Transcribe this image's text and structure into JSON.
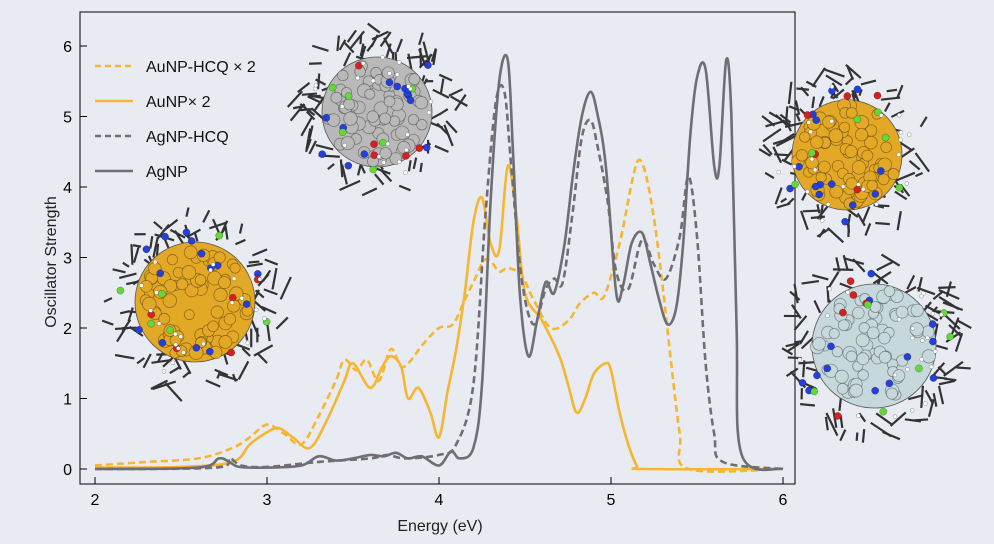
{
  "chart_data": {
    "type": "line",
    "xlabel": "Energy (eV)",
    "ylabel": "Oscillator Strength",
    "xlim": [
      2,
      6
    ],
    "ylim": [
      0,
      6
    ],
    "xticks": [
      "2",
      "3",
      "4",
      "5",
      "6"
    ],
    "yticks": [
      "0",
      "1",
      "2",
      "3",
      "4",
      "5",
      "6"
    ],
    "legend_position": "top-left",
    "series": [
      {
        "name": "AuNP-HCQ × 2",
        "color": "#f5b632",
        "dash": "dashed",
        "x": [
          2.0,
          2.3,
          2.6,
          2.8,
          2.9,
          3.0,
          3.1,
          3.2,
          3.3,
          3.4,
          3.45,
          3.52,
          3.58,
          3.65,
          3.72,
          3.78,
          3.84,
          3.9,
          4.0,
          4.08,
          4.15,
          4.2,
          4.26,
          4.3,
          4.35,
          4.4,
          4.48,
          4.55,
          4.65,
          4.75,
          4.82,
          4.9,
          4.96,
          5.05,
          5.12,
          5.16,
          5.2,
          5.25,
          5.3,
          5.35,
          5.4,
          5.45,
          6.0
        ],
        "y": [
          0.05,
          0.1,
          0.15,
          0.3,
          0.45,
          0.63,
          0.5,
          0.35,
          0.75,
          1.25,
          1.55,
          1.4,
          1.55,
          1.25,
          1.7,
          1.45,
          1.55,
          1.75,
          2.0,
          2.05,
          2.4,
          2.65,
          2.95,
          2.95,
          2.8,
          2.85,
          2.75,
          2.4,
          2.0,
          2.1,
          2.35,
          2.5,
          2.45,
          3.2,
          4.05,
          4.38,
          4.2,
          3.55,
          2.6,
          1.5,
          0.5,
          0.0,
          0.0
        ]
      },
      {
        "name": "AuNP× 2",
        "color": "#f5b632",
        "dash": "solid",
        "x": [
          2.0,
          2.5,
          2.8,
          2.9,
          3.0,
          3.07,
          3.15,
          3.25,
          3.35,
          3.45,
          3.5,
          3.6,
          3.67,
          3.72,
          3.78,
          3.82,
          3.88,
          3.95,
          4.0,
          4.05,
          4.1,
          4.15,
          4.2,
          4.25,
          4.3,
          4.35,
          4.4,
          4.45,
          4.5,
          4.6,
          4.7,
          4.75,
          4.8,
          4.85,
          4.9,
          4.97,
          5.0,
          5.05,
          5.1,
          5.15,
          5.2,
          6.0
        ],
        "y": [
          0.02,
          0.03,
          0.1,
          0.35,
          0.52,
          0.58,
          0.45,
          0.3,
          0.7,
          1.25,
          1.5,
          1.15,
          1.45,
          1.6,
          1.45,
          1.0,
          1.15,
          0.8,
          0.45,
          1.1,
          1.7,
          2.5,
          3.5,
          3.85,
          3.2,
          3.1,
          4.3,
          3.6,
          2.5,
          2.1,
          1.6,
          1.2,
          0.8,
          1.0,
          1.35,
          1.5,
          1.4,
          0.8,
          0.35,
          0.05,
          0.0,
          0.0
        ]
      },
      {
        "name": "AgNP-HCQ",
        "color": "#6e6e73",
        "dash": "dashed",
        "x": [
          2.0,
          2.7,
          2.78,
          2.85,
          3.0,
          3.3,
          3.6,
          3.7,
          3.8,
          4.0,
          4.1,
          4.2,
          4.27,
          4.33,
          4.38,
          4.42,
          4.48,
          4.55,
          4.62,
          4.67,
          4.72,
          4.78,
          4.83,
          4.88,
          4.92,
          4.98,
          5.03,
          5.1,
          5.18,
          5.25,
          5.32,
          5.4,
          5.45,
          5.5,
          5.55,
          5.6,
          5.65,
          6.0
        ],
        "y": [
          0.0,
          0.02,
          0.15,
          0.05,
          0.03,
          0.1,
          0.15,
          0.2,
          0.15,
          0.2,
          0.35,
          1.2,
          3.6,
          5.2,
          5.35,
          4.3,
          2.7,
          2.05,
          2.55,
          2.7,
          2.65,
          3.7,
          4.7,
          4.95,
          4.6,
          3.8,
          2.8,
          2.55,
          3.25,
          2.9,
          2.7,
          3.3,
          4.15,
          3.3,
          1.5,
          0.5,
          0.1,
          0.0
        ]
      },
      {
        "name": "AgNP",
        "color": "#6e6e73",
        "dash": "solid",
        "x": [
          2.0,
          2.6,
          2.72,
          2.78,
          2.84,
          3.0,
          3.2,
          3.3,
          3.4,
          3.5,
          3.6,
          3.68,
          3.75,
          3.82,
          3.9,
          4.0,
          4.07,
          4.12,
          4.2,
          4.25,
          4.3,
          4.35,
          4.4,
          4.43,
          4.47,
          4.52,
          4.57,
          4.62,
          4.67,
          4.73,
          4.78,
          4.83,
          4.88,
          4.92,
          4.97,
          5.03,
          5.07,
          5.12,
          5.18,
          5.23,
          5.28,
          5.33,
          5.38,
          5.42,
          5.46,
          5.5,
          5.55,
          5.6,
          5.63,
          5.67,
          5.7,
          5.73,
          5.76,
          6.0
        ],
        "y": [
          0.0,
          0.02,
          0.15,
          0.1,
          0.03,
          0.02,
          0.05,
          0.18,
          0.12,
          0.15,
          0.2,
          0.18,
          0.23,
          0.15,
          0.18,
          0.05,
          0.25,
          0.15,
          0.3,
          1.2,
          3.8,
          5.5,
          5.8,
          4.5,
          2.5,
          1.6,
          2.1,
          2.65,
          2.5,
          3.2,
          4.2,
          5.0,
          5.35,
          5.05,
          4.3,
          2.5,
          2.6,
          3.2,
          3.35,
          2.9,
          2.4,
          2.05,
          2.3,
          3.2,
          4.7,
          5.55,
          5.67,
          4.3,
          4.3,
          5.8,
          5.0,
          2.0,
          0.2,
          0.0
        ]
      }
    ]
  },
  "legend": [
    {
      "label": "AuNP-HCQ × 2",
      "color": "#f5b632",
      "dash": "dashed"
    },
    {
      "label": "AuNP× 2",
      "color": "#f5b632",
      "dash": "solid"
    },
    {
      "label": "AgNP-HCQ",
      "color": "#6e6e73",
      "dash": "dashed"
    },
    {
      "label": "AgNP",
      "color": "#6e6e73",
      "dash": "solid"
    }
  ],
  "insets": [
    {
      "name": "gold-nanoparticle-hcq-inset",
      "core_color": "#e3a826"
    },
    {
      "name": "gold-nanoparticle-inset",
      "core_color": "#e3a826"
    },
    {
      "name": "silver-nanoparticle-inset",
      "core_color": "#b9b9b9"
    },
    {
      "name": "silver-nanoparticle-hcq-inset",
      "core_color": "#c6d8dc"
    }
  ]
}
